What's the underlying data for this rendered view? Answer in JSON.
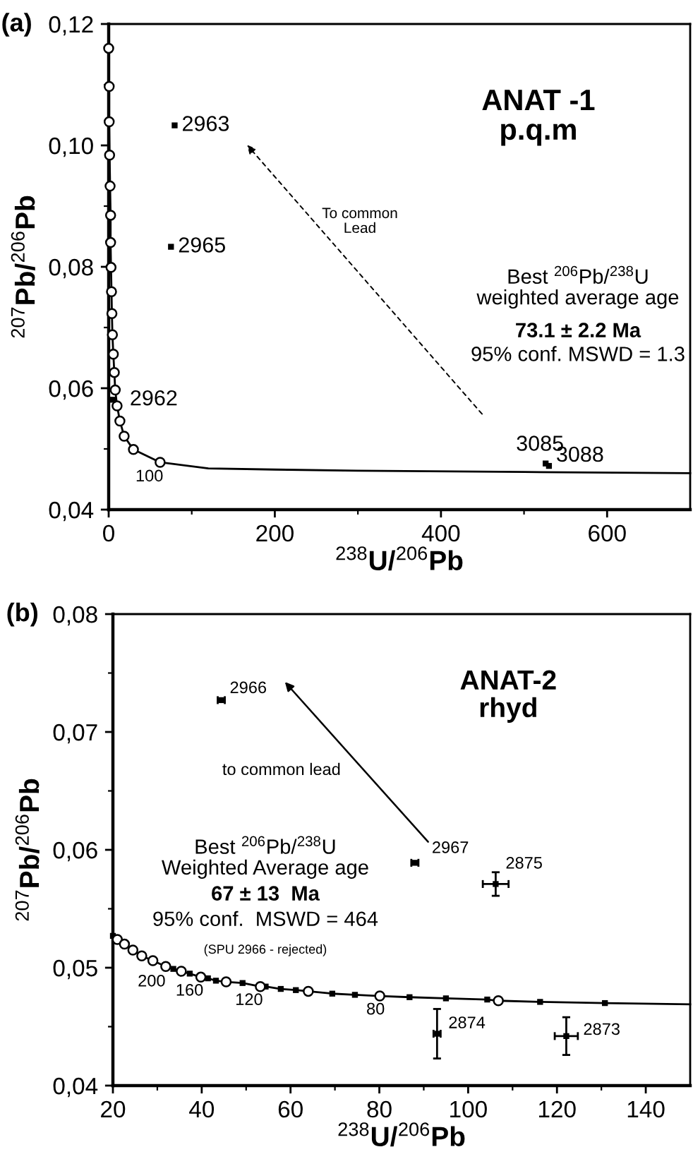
{
  "chart_data": [
    {
      "type": "scatter",
      "title": "(a)",
      "xlabel": "$^{238}$U/$^{206}$Pb",
      "ylabel": "$^{207}$Pb/$^{206}$Pb",
      "xlim": [
        0,
        700
      ],
      "ylim": [
        0.04,
        0.12
      ],
      "xticks": [
        0,
        {
          "value": 100,
          "label": null
        },
        200,
        {
          "value": 300,
          "label": null
        },
        400,
        {
          "value": 500,
          "label": null
        },
        600
      ],
      "yticks": [
        {
          "value": 0.04,
          "label": "0,04"
        },
        {
          "value": 0.05,
          "label": null
        },
        {
          "value": 0.06,
          "label": "0,06"
        },
        {
          "value": 0.07,
          "label": null
        },
        {
          "value": 0.08,
          "label": "0,08"
        },
        {
          "value": 0.09,
          "label": null
        },
        {
          "value": 0.1,
          "label": "0,10"
        },
        {
          "value": 0.11,
          "label": null
        },
        {
          "value": 0.12,
          "label": "0,12"
        }
      ],
      "series": [
        {
          "type": "line",
          "color": "#000000",
          "marker": "none",
          "line_style": "solid",
          "x": [
            0,
            0.6,
            0.6,
            1.1,
            1.7,
            2.3,
            2.3,
            2.8,
            3.4,
            3.9,
            4.5,
            5.6,
            6.8,
            7.9,
            10.1,
            13.5,
            18.6,
            29.8,
            61.9,
            120,
            200,
            300,
            500,
            700
          ],
          "values": [
            0.116,
            0.1097,
            0.1039,
            0.0984,
            0.0933,
            0.0885,
            0.084,
            0.0799,
            0.0759,
            0.0723,
            0.0688,
            0.0656,
            0.0626,
            0.0597,
            0.0571,
            0.0546,
            0.0521,
            0.0499,
            0.0478,
            0.0468,
            0.0466,
            0.0464,
            0.0462,
            0.046
          ]
        },
        {
          "color": "#000000",
          "marker": "circle",
          "x": [
            0,
            0.6,
            0.6,
            1.1,
            1.7,
            2.3,
            2.3,
            2.8,
            3.4,
            3.9,
            4.5,
            5.6,
            6.8,
            7.9,
            10.1,
            13.5,
            18.6,
            29.8,
            61.9
          ],
          "values": [
            0.116,
            0.1097,
            0.1039,
            0.0984,
            0.0933,
            0.0885,
            0.084,
            0.0799,
            0.0759,
            0.0723,
            0.0688,
            0.0656,
            0.0626,
            0.0597,
            0.0571,
            0.0546,
            0.0521,
            0.0499,
            0.0478
          ]
        },
        {
          "color": "#000000",
          "marker": "square",
          "x": [
            79.4,
            75,
            5,
            526,
            530
          ],
          "values": [
            0.1033,
            0.0833,
            0.0581,
            0.0476,
            0.0472
          ]
        }
      ],
      "annotations": [
        "ANAT -1\np.q.m",
        "To common\nLead",
        "Best $^{206}$Pb/$^{238}$U\nweighted average age",
        "73.1 ± 2.2 Ma",
        "95% conf. MSWD = 1.3",
        {
          "text": "2963",
          "x": 79.4,
          "y": 0.1033
        },
        {
          "text": "2965",
          "x": 75,
          "y": 0.0833
        },
        {
          "text": "2962",
          "x": 5,
          "y": 0.0581
        },
        {
          "text": "3085",
          "x": 526,
          "y": 0.0476
        },
        {
          "text": "3088",
          "x": 530,
          "y": 0.0472
        },
        "100"
      ]
    },
    {
      "type": "scatter",
      "title": "(b)",
      "xlabel": "$^{238}$U/$^{206}$Pb",
      "ylabel": "$^{207}$Pb/$^{206}$Pb",
      "xlim": [
        20,
        150
      ],
      "ylim": [
        0.04,
        0.08
      ],
      "xticks": [
        20,
        {
          "value": 30,
          "label": null
        },
        40,
        {
          "value": 50,
          "label": null
        },
        60,
        {
          "value": 70,
          "label": null
        },
        80,
        {
          "value": 90,
          "label": null
        },
        100,
        {
          "value": 110,
          "label": null
        },
        120,
        {
          "value": 130,
          "label": null
        },
        140
      ],
      "yticks": [
        {
          "value": 0.04,
          "label": "0,04"
        },
        {
          "value": 0.045,
          "label": null
        },
        {
          "value": 0.05,
          "label": "0,05"
        },
        {
          "value": 0.055,
          "label": null
        },
        {
          "value": 0.06,
          "label": "0,06"
        },
        {
          "value": 0.065,
          "label": null
        },
        {
          "value": 0.07,
          "label": "0,07"
        },
        {
          "value": 0.075,
          "label": null
        },
        {
          "value": 0.08,
          "label": "0,08"
        }
      ],
      "series": [
        {
          "type": "line",
          "color": "#000000",
          "marker": "none",
          "line_style": "solid",
          "x": [
            20,
            21,
            22.6,
            24.5,
            26.5,
            29,
            31.9,
            33.6,
            35.4,
            37.3,
            39.8,
            41.4,
            43.2,
            45.5,
            49.2,
            53.2,
            54.4,
            57.8,
            61.2,
            64,
            69.4,
            74.5,
            80.1,
            86.8,
            95,
            104.3,
            106.8,
            116.2,
            130.8,
            150
          ],
          "values": [
            0.0527,
            0.0524,
            0.052,
            0.0515,
            0.051,
            0.0506,
            0.0501,
            0.0499,
            0.0497,
            0.0495,
            0.0492,
            0.0491,
            0.0489,
            0.0488,
            0.0487,
            0.0484,
            0.0484,
            0.0482,
            0.0481,
            0.048,
            0.0478,
            0.0477,
            0.0476,
            0.0475,
            0.0474,
            0.0473,
            0.0472,
            0.0471,
            0.047,
            0.0469
          ]
        },
        {
          "color": "#000000",
          "marker": "square",
          "x": [
            20,
            33.6,
            37.3,
            41.4,
            43.2,
            49.2,
            54.4,
            57.8,
            61.2,
            69.4,
            74.5,
            86.8,
            95,
            104.3,
            116.2,
            130.8
          ],
          "values": [
            0.0527,
            0.0499,
            0.0495,
            0.0491,
            0.0489,
            0.0487,
            0.0484,
            0.0482,
            0.0481,
            0.0478,
            0.0477,
            0.0475,
            0.0474,
            0.0473,
            0.0471,
            0.047
          ]
        },
        {
          "color": "#000000",
          "marker": "circle",
          "x": [
            21,
            22.6,
            24.5,
            26.5,
            29,
            31.9,
            35.4,
            39.8,
            45.5,
            53.2,
            64,
            80.1,
            106.8
          ],
          "values": [
            0.0524,
            0.052,
            0.0515,
            0.051,
            0.0506,
            0.0501,
            0.0497,
            0.0492,
            0.0488,
            0.0484,
            0.048,
            0.0476,
            0.0472
          ]
        },
        {
          "color": "#000000",
          "marker": "square",
          "x": [
            44.4,
            88,
            106.2,
            93,
            122.1
          ],
          "values": [
            0.0727,
            0.0589,
            0.0571,
            0.0444,
            0.0442
          ],
          "xerrors": [
            0.8,
            0.8,
            2.9,
            0.8,
            2.6
          ],
          "errors": [
            null,
            null,
            0.001,
            0.0021,
            0.0016
          ]
        }
      ],
      "annotations": [
        "ANAT-2\nrhyd",
        "to common lead",
        "Best $^{206}$Pb/$^{238}$U\nWeighted Average age",
        "67 ± 13  Ma",
        "95% conf.  MSWD = 464",
        "(SPU 2966 - rejected)",
        {
          "text": "2966",
          "x": 44.4,
          "y": 0.0727
        },
        {
          "text": "2967",
          "x": 88,
          "y": 0.0589
        },
        {
          "text": "2875",
          "x": 106.2,
          "y": 0.0571
        },
        {
          "text": "2874",
          "x": 93,
          "y": 0.0444
        },
        {
          "text": "2873",
          "x": 122.1,
          "y": 0.0442
        },
        {
          "text": "200",
          "x": 31.9,
          "y": 0.0501
        },
        {
          "text": "160",
          "x": 39.8,
          "y": 0.0492
        },
        {
          "text": "120",
          "x": 53.2,
          "y": 0.0484
        },
        {
          "text": "80",
          "x": 80.1,
          "y": 0.0476
        }
      ]
    }
  ]
}
